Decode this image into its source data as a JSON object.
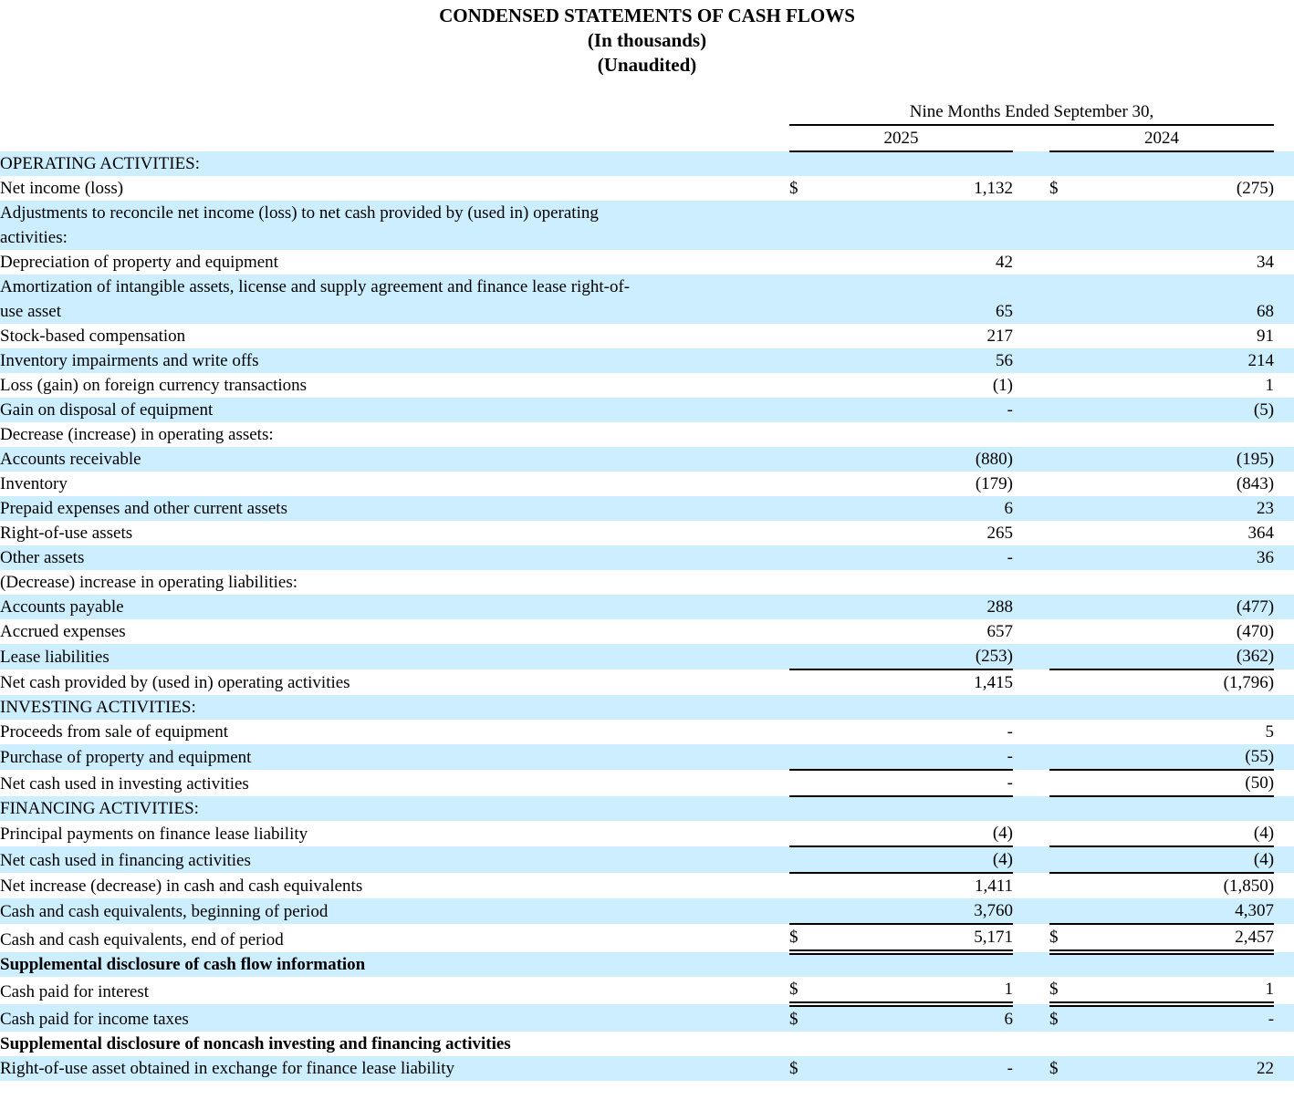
{
  "title": {
    "line1": "CONDENSED STATEMENTS OF CASH FLOWS",
    "line2": "(In thousands)",
    "line3": "(Unaudited)"
  },
  "colors": {
    "row_highlight": "#cceeff",
    "text": "#000000",
    "rule": "#000000"
  },
  "table": {
    "period_label": "Nine Months Ended September 30,",
    "years": [
      "2025",
      "2024"
    ],
    "rows": [
      {
        "label": "OPERATING ACTIVITIES:",
        "ind": 0,
        "hl": true
      },
      {
        "label": "Net income (loss)",
        "ind": 0,
        "d1": "$",
        "v1": "1,132",
        "d2": "$",
        "v2": "(275)"
      },
      {
        "label": "Adjustments to reconcile net income (loss) to net cash provided by (used in) operating\nactivities:",
        "ind": 0,
        "hl": true
      },
      {
        "label": "Depreciation of property and equipment",
        "ind": 1,
        "v1": "42",
        "v2": "34"
      },
      {
        "label": "Amortization of intangible assets, license and supply agreement and finance lease right-of-\nuse asset",
        "ind": 1,
        "hl": true,
        "v1": "65",
        "v2": "68"
      },
      {
        "label": "Stock-based compensation",
        "ind": 1,
        "v1": "217",
        "v2": "91"
      },
      {
        "label": "Inventory impairments and write offs",
        "ind": 1,
        "hl": true,
        "v1": "56",
        "v2": "214"
      },
      {
        "label": "Loss (gain) on foreign currency transactions",
        "ind": 1,
        "v1": "(1)",
        "v2": "1"
      },
      {
        "label": "Gain on disposal of equipment",
        "ind": 1,
        "hl": true,
        "v1": "-",
        "v2": "(5)"
      },
      {
        "label": "Decrease (increase) in operating assets:",
        "ind": 0
      },
      {
        "label": "Accounts receivable",
        "ind": 1,
        "hl": true,
        "v1": "(880)",
        "v2": "(195)"
      },
      {
        "label": "Inventory",
        "ind": 1,
        "v1": "(179)",
        "v2": "(843)"
      },
      {
        "label": "Prepaid expenses and other current assets",
        "ind": 1,
        "hl": true,
        "v1": "6",
        "v2": "23"
      },
      {
        "label": "Right-of-use assets",
        "ind": 1,
        "v1": "265",
        "v2": "364"
      },
      {
        "label": "Other assets",
        "ind": 1,
        "hl": true,
        "v1": "-",
        "v2": "36"
      },
      {
        "label": "(Decrease) increase in operating liabilities:",
        "ind": 0
      },
      {
        "label": "Accounts payable",
        "ind": 1,
        "hl": true,
        "v1": "288",
        "v2": "(477)"
      },
      {
        "label": "Accrued expenses",
        "ind": 1,
        "v1": "657",
        "v2": "(470)"
      },
      {
        "label": "Lease liabilities",
        "ind": 1,
        "hl": true,
        "v1": "(253)",
        "v2": "(362)",
        "line": "s"
      },
      {
        "label": "Net cash provided by (used in) operating activities",
        "ind": 1,
        "v1": "1,415",
        "v2": "(1,796)"
      },
      {
        "label": "INVESTING ACTIVITIES:",
        "ind": 0,
        "hl": true
      },
      {
        "label": "Proceeds from sale of equipment",
        "ind": 1,
        "v1": "-",
        "v2": "5"
      },
      {
        "label": "Purchase of property and equipment",
        "ind": 1,
        "hl": true,
        "v1": "-",
        "v2": "(55)",
        "line": "s"
      },
      {
        "label": "Net cash used in investing activities",
        "ind": 1,
        "v1": "-",
        "v2": "(50)",
        "line": "s"
      },
      {
        "label": "FINANCING ACTIVITIES:",
        "ind": 0,
        "hl": true
      },
      {
        "label": "Principal payments on finance lease liability",
        "ind": 1,
        "v1": "(4)",
        "v2": "(4)",
        "line": "s"
      },
      {
        "label": "Net cash used in financing activities",
        "ind": 1,
        "hl": true,
        "v1": "(4)",
        "v2": "(4)",
        "line": "s"
      },
      {
        "label": "Net increase (decrease) in cash and cash equivalents",
        "ind": 0,
        "v1": "1,411",
        "v2": "(1,850)"
      },
      {
        "label": "Cash and cash equivalents, beginning of period",
        "ind": 0,
        "hl": true,
        "v1": "3,760",
        "v2": "4,307",
        "line": "s"
      },
      {
        "label": "Cash and cash equivalents, end of period",
        "ind": 0,
        "d1": "$",
        "v1": "5,171",
        "d2": "$",
        "v2": "2,457",
        "line": "d"
      },
      {
        "label": "Supplemental disclosure of cash flow information",
        "ind": 0,
        "hl": true,
        "bold": true
      },
      {
        "label": "Cash paid for interest",
        "ind": 1,
        "d1": "$",
        "v1": "1",
        "d2": "$",
        "v2": "1",
        "line": "d"
      },
      {
        "label": "Cash paid for income taxes",
        "ind": 1,
        "hl": true,
        "d1": "$",
        "v1": "6",
        "d2": "$",
        "v2": "-"
      },
      {
        "label": "Supplemental disclosure of noncash investing and financing activities",
        "ind": 0,
        "bold": true
      },
      {
        "label": "Right-of-use asset obtained in exchange for finance lease liability",
        "ind": 1,
        "hl": true,
        "d1": "$",
        "v1": "-",
        "d2": "$",
        "v2": "22"
      }
    ]
  }
}
